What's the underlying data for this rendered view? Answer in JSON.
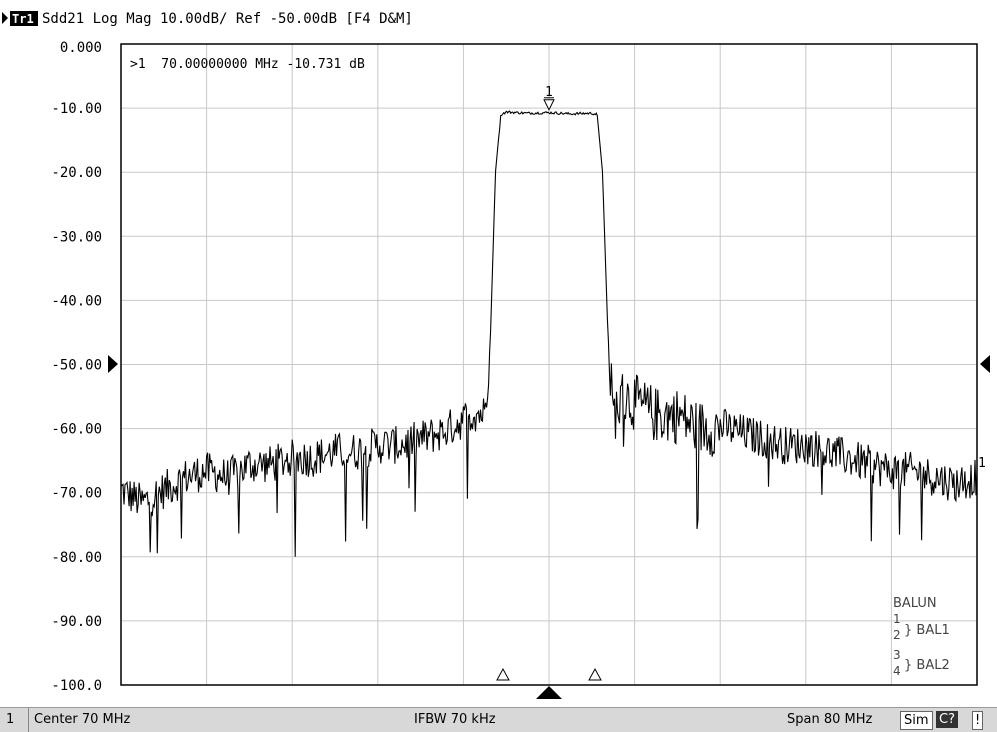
{
  "header": {
    "trace_tag": "Tr1",
    "trace_text": "Sdd21 Log Mag 10.00dB/ Ref -50.00dB [F4 D&M]"
  },
  "marker_readout": ">1  70.00000000 MHz -10.731 dB",
  "marker_label": "1",
  "trace_end_label": "1",
  "balun_legend": {
    "title": "BALUN",
    "rows": [
      {
        "top": "1",
        "bottom": "2",
        "name": "} BAL1"
      },
      {
        "top": "3",
        "bottom": "4",
        "name": "} BAL2"
      }
    ]
  },
  "status_bar": {
    "channel": "1",
    "center": "Center 70 MHz",
    "ifbw": "IFBW 70 kHz",
    "span": "Span 80 MHz",
    "sim": "Sim",
    "c_flag": "C?",
    "bang": "!"
  },
  "colors": {
    "trace": "#000000",
    "grid": "#c8c8c8",
    "status_bg": "#d8d8d8"
  },
  "chart_data": {
    "type": "line",
    "title": "",
    "xlabel": "",
    "ylabel": "",
    "x_unit": "MHz",
    "xlim": [
      30,
      110
    ],
    "ylim": [
      -100,
      0
    ],
    "grid": true,
    "y_ticks": [
      "0.000",
      "-10.00",
      "-20.00",
      "-30.00",
      "-40.00",
      "-50.00",
      "-60.00",
      "-70.00",
      "-80.00",
      "-90.00",
      "-100.0"
    ],
    "y_tick_values": [
      0,
      -10,
      -20,
      -30,
      -40,
      -50,
      -60,
      -70,
      -80,
      -90,
      -100
    ],
    "reference_level": -50,
    "series": [
      {
        "x": [
          30,
          32,
          34,
          36,
          38,
          40,
          42,
          44,
          46,
          48,
          50,
          52,
          54,
          56,
          58,
          60,
          62,
          63,
          64,
          64.5,
          65,
          65.5,
          66,
          68,
          70,
          72,
          74,
          74.5,
          75,
          75.5,
          76,
          77,
          78,
          80,
          82,
          84,
          86,
          88,
          90,
          92,
          94,
          96,
          98,
          100,
          102,
          104,
          106,
          108,
          110
        ],
        "y": [
          -69,
          -71,
          -69,
          -67,
          -66,
          -67,
          -65,
          -65,
          -64,
          -64,
          -63,
          -63,
          -62,
          -62,
          -61,
          -60,
          -58,
          -57,
          -57,
          -47,
          -20,
          -11,
          -10.6,
          -10.8,
          -10.7,
          -10.9,
          -10.8,
          -11,
          -20,
          -45,
          -57,
          -54,
          -55,
          -57,
          -57,
          -59,
          -59,
          -60,
          -61,
          -62,
          -62,
          -63,
          -64,
          -65,
          -66,
          -66,
          -67,
          -68,
          -67
        ],
        "ripple_noise": true
      }
    ],
    "markers": [
      {
        "id": 1,
        "x": 70.0,
        "y": -10.731,
        "type": "active"
      },
      {
        "x": 65.7,
        "type": "bandwidth"
      },
      {
        "x": 74.3,
        "type": "bandwidth"
      }
    ],
    "stimulus_pointer_x": 70
  }
}
